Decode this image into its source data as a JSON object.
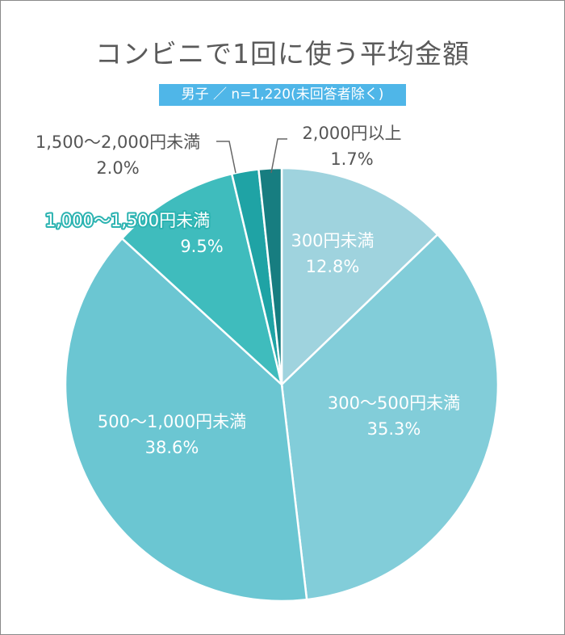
{
  "chart_data": {
    "type": "pie",
    "title": "コンビニで1回に使う平均金額",
    "subtitle": "男子 ／ n=1,220(未回答者除く)",
    "start_angle_deg": 0,
    "direction": "clockwise",
    "slices": [
      {
        "label": "300円未満",
        "value_label": "12.8%",
        "value": 12.8,
        "color": "#9fd3de"
      },
      {
        "label": "300〜500円未満",
        "value_label": "35.3%",
        "value": 35.3,
        "color": "#82cdd9"
      },
      {
        "label": "500〜1,000円未満",
        "value_label": "38.6%",
        "value": 38.6,
        "color": "#6bc6d2"
      },
      {
        "label": "1,000〜1,500円未満",
        "value_label": "9.5%",
        "value": 9.5,
        "color": "#3fbcbd"
      },
      {
        "label": "1,500〜2,000円未満",
        "value_label": "2.0%",
        "value": 2.0,
        "color": "#1fa3a5"
      },
      {
        "label": "2,000円以上",
        "value_label": "1.7%",
        "value": 1.7,
        "color": "#177d80"
      }
    ]
  }
}
